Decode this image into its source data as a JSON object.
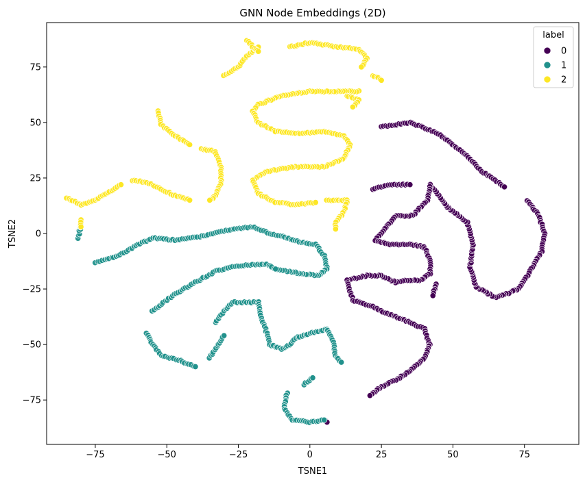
{
  "chart_data": {
    "type": "scatter",
    "title": "GNN Node Embeddings (2D)",
    "xlabel": "TSNE1",
    "ylabel": "TSNE2",
    "xlim": [
      -92,
      94
    ],
    "ylim": [
      -95,
      95
    ],
    "xticks": [
      -75,
      -50,
      -25,
      0,
      25,
      50,
      75
    ],
    "yticks": [
      -75,
      -50,
      -25,
      0,
      25,
      50,
      75
    ],
    "xtick_labels": [
      "−75",
      "−50",
      "−25",
      "0",
      "25",
      "50",
      "75"
    ],
    "ytick_labels": [
      "−75",
      "−50",
      "−25",
      "0",
      "25",
      "50",
      "75"
    ],
    "grid": false,
    "legend": {
      "title": "label",
      "placement": "top-right",
      "entries": [
        "0",
        "1",
        "2"
      ]
    },
    "series": [
      {
        "name": "0",
        "color": "#440154",
        "paths": [
          [
            [
              25,
              48
            ],
            [
              35,
              50
            ],
            [
              45,
              45
            ],
            [
              55,
              35
            ],
            [
              60,
              28
            ],
            [
              68,
              21
            ]
          ],
          [
            [
              76,
              15
            ],
            [
              80,
              8
            ],
            [
              82,
              0
            ],
            [
              81,
              -8
            ],
            [
              77,
              -17
            ],
            [
              73,
              -25
            ],
            [
              65,
              -29
            ],
            [
              58,
              -24
            ],
            [
              56,
              -15
            ],
            [
              57,
              -5
            ],
            [
              55,
              5
            ],
            [
              48,
              12
            ],
            [
              42,
              22
            ],
            [
              41,
              15
            ],
            [
              36,
              8
            ],
            [
              30,
              8
            ],
            [
              26,
              2
            ],
            [
              23,
              -3
            ],
            [
              28,
              -5
            ],
            [
              35,
              -5
            ],
            [
              40,
              -6
            ],
            [
              42,
              -12
            ],
            [
              42,
              -18
            ],
            [
              39,
              -21
            ],
            [
              34,
              -21
            ],
            [
              30,
              -22
            ],
            [
              25,
              -19
            ],
            [
              20,
              -19
            ],
            [
              13,
              -21
            ],
            [
              15,
              -30
            ],
            [
              22,
              -33
            ],
            [
              27,
              -36
            ],
            [
              33,
              -39
            ],
            [
              40,
              -43
            ],
            [
              42,
              -50
            ],
            [
              40,
              -56
            ],
            [
              35,
              -62
            ],
            [
              30,
              -66
            ],
            [
              25,
              -69
            ],
            [
              21,
              -73
            ]
          ],
          [
            [
              22,
              20
            ],
            [
              28,
              22
            ],
            [
              35,
              22
            ]
          ],
          [
            [
              44,
              -23
            ],
            [
              43,
              -28
            ]
          ],
          [
            [
              5,
              -84
            ],
            [
              6,
              -85
            ]
          ]
        ]
      },
      {
        "name": "1",
        "color": "#21918c",
        "paths": [
          [
            [
              -81,
              -2
            ],
            [
              -80,
              4
            ]
          ],
          [
            [
              -75,
              -13
            ],
            [
              -67,
              -10
            ],
            [
              -60,
              -5
            ],
            [
              -55,
              -2
            ],
            [
              -47,
              -3
            ],
            [
              -37,
              -1
            ],
            [
              -27,
              2
            ],
            [
              -20,
              3
            ],
            [
              -14,
              0
            ],
            [
              -8,
              -2
            ],
            [
              -3,
              -4
            ],
            [
              2,
              -5
            ],
            [
              5,
              -10
            ],
            [
              6,
              -16
            ],
            [
              3,
              -19
            ],
            [
              -3,
              -18
            ],
            [
              -8,
              -17
            ],
            [
              -12,
              -16
            ]
          ],
          [
            [
              -55,
              -35
            ],
            [
              -48,
              -28
            ],
            [
              -40,
              -22
            ],
            [
              -33,
              -17
            ],
            [
              -27,
              -15
            ],
            [
              -20,
              -14
            ],
            [
              -15,
              -14
            ],
            [
              -12,
              -16
            ]
          ],
          [
            [
              -57,
              -45
            ],
            [
              -55,
              -50
            ],
            [
              -52,
              -55
            ],
            [
              -46,
              -57
            ],
            [
              -40,
              -60
            ]
          ],
          [
            [
              -33,
              -40
            ],
            [
              -30,
              -35
            ],
            [
              -27,
              -31
            ],
            [
              -22,
              -31
            ],
            [
              -18,
              -31
            ]
          ],
          [
            [
              -35,
              -56
            ],
            [
              -32,
              -50
            ],
            [
              -30,
              -46
            ]
          ],
          [
            [
              -18,
              -31
            ],
            [
              -17,
              -38
            ],
            [
              -15,
              -45
            ],
            [
              -14,
              -50
            ],
            [
              -10,
              -52
            ],
            [
              -7,
              -50
            ],
            [
              -5,
              -47
            ],
            [
              0,
              -45
            ],
            [
              3,
              -44
            ],
            [
              6,
              -43
            ],
            [
              8,
              -48
            ],
            [
              9,
              -55
            ],
            [
              11,
              -58
            ]
          ],
          [
            [
              -8,
              -72
            ],
            [
              -9,
              -79
            ],
            [
              -6,
              -84
            ],
            [
              0,
              -85
            ],
            [
              5,
              -84
            ]
          ],
          [
            [
              -2,
              -68
            ],
            [
              1,
              -65
            ]
          ]
        ]
      },
      {
        "name": "2",
        "color": "#fde725",
        "paths": [
          [
            [
              -85,
              16
            ],
            [
              -80,
              13
            ],
            [
              -75,
              15
            ],
            [
              -70,
              19
            ],
            [
              -66,
              22
            ]
          ],
          [
            [
              -80,
              6
            ],
            [
              -80,
              3
            ]
          ],
          [
            [
              -62,
              24
            ],
            [
              -57,
              23
            ],
            [
              -52,
              20
            ],
            [
              -47,
              17
            ],
            [
              -42,
              15
            ]
          ],
          [
            [
              -53,
              55
            ],
            [
              -52,
              49
            ],
            [
              -47,
              44
            ],
            [
              -42,
              40
            ]
          ],
          [
            [
              -38,
              38
            ],
            [
              -33,
              37
            ],
            [
              -31,
              30
            ],
            [
              -31,
              23
            ],
            [
              -33,
              17
            ],
            [
              -35,
              15
            ]
          ],
          [
            [
              -30,
              71
            ],
            [
              -25,
              75
            ],
            [
              -22,
              80
            ],
            [
              -18,
              84
            ]
          ],
          [
            [
              -22,
              87
            ],
            [
              -20,
              84
            ],
            [
              -18,
              82
            ]
          ],
          [
            [
              -7,
              84
            ],
            [
              0,
              86
            ],
            [
              10,
              84
            ],
            [
              17,
              83
            ],
            [
              20,
              79
            ],
            [
              18,
              75
            ]
          ],
          [
            [
              22,
              71
            ],
            [
              24,
              70
            ],
            [
              25,
              69
            ]
          ],
          [
            [
              17,
              64
            ],
            [
              10,
              64
            ],
            [
              0,
              64
            ],
            [
              -10,
              62
            ],
            [
              -18,
              58
            ],
            [
              -20,
              55
            ],
            [
              -18,
              50
            ],
            [
              -12,
              46
            ],
            [
              -5,
              45
            ],
            [
              5,
              46
            ],
            [
              12,
              44
            ],
            [
              14,
              40
            ],
            [
              12,
              34
            ],
            [
              5,
              30
            ],
            [
              -5,
              30
            ],
            [
              -15,
              28
            ],
            [
              -20,
              24
            ],
            [
              -18,
              18
            ],
            [
              -12,
              14
            ],
            [
              -5,
              13
            ],
            [
              2,
              14
            ]
          ],
          [
            [
              6,
              15
            ],
            [
              10,
              15
            ],
            [
              13,
              15
            ],
            [
              12,
              10
            ],
            [
              9,
              5
            ],
            [
              9,
              2
            ]
          ],
          [
            [
              13,
              62
            ],
            [
              17,
              60
            ],
            [
              15,
              57
            ]
          ]
        ]
      }
    ]
  }
}
